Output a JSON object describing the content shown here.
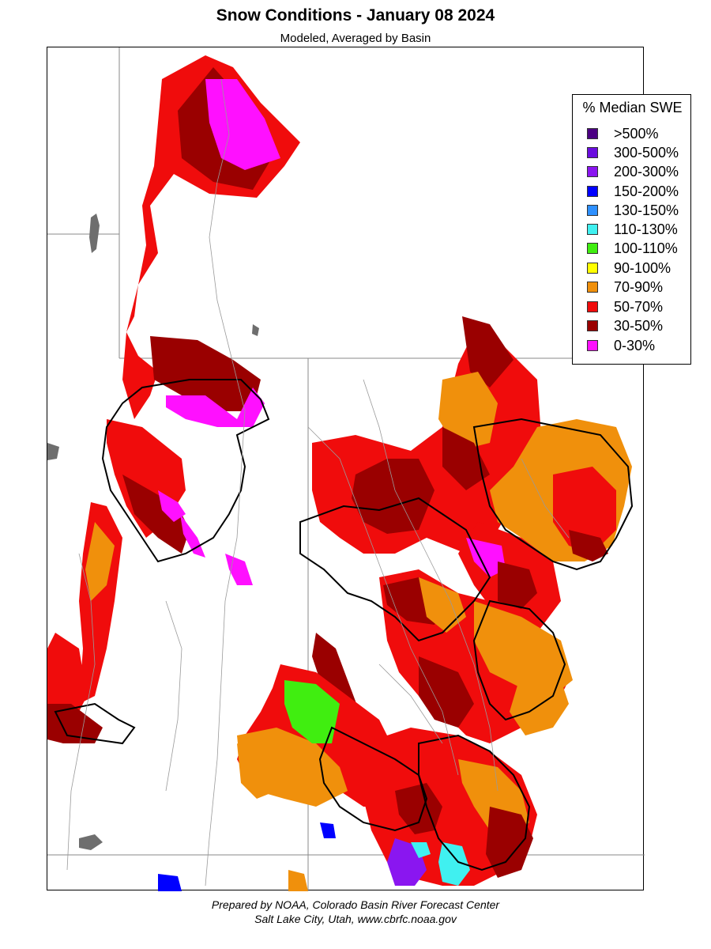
{
  "title": "Snow Conditions - January 08 2024",
  "subtitle": "Modeled, Averaged by Basin",
  "legend": {
    "title": "% Median SWE",
    "items": [
      {
        "label": ">500%",
        "color": "#4b0082"
      },
      {
        "label": "300-500%",
        "color": "#6a0dde"
      },
      {
        "label": "200-300%",
        "color": "#8a16f0"
      },
      {
        "label": "150-200%",
        "color": "#0000ff"
      },
      {
        "label": "130-150%",
        "color": "#2e90ff"
      },
      {
        "label": "110-130%",
        "color": "#40f0f0"
      },
      {
        "label": "100-110%",
        "color": "#40ee10"
      },
      {
        "label": "90-100%",
        "color": "#ffff00"
      },
      {
        "label": "70-90%",
        "color": "#f0900c"
      },
      {
        "label": "50-70%",
        "color": "#f00c0c"
      },
      {
        "label": "30-50%",
        "color": "#9a0000"
      },
      {
        "label": "0-30%",
        "color": "#ff10ff"
      }
    ]
  },
  "footer": {
    "line1": "Prepared by NOAA, Colorado Basin River Forecast Center",
    "line2": "Salt Lake City, Utah, www.cbrfc.noaa.gov"
  }
}
